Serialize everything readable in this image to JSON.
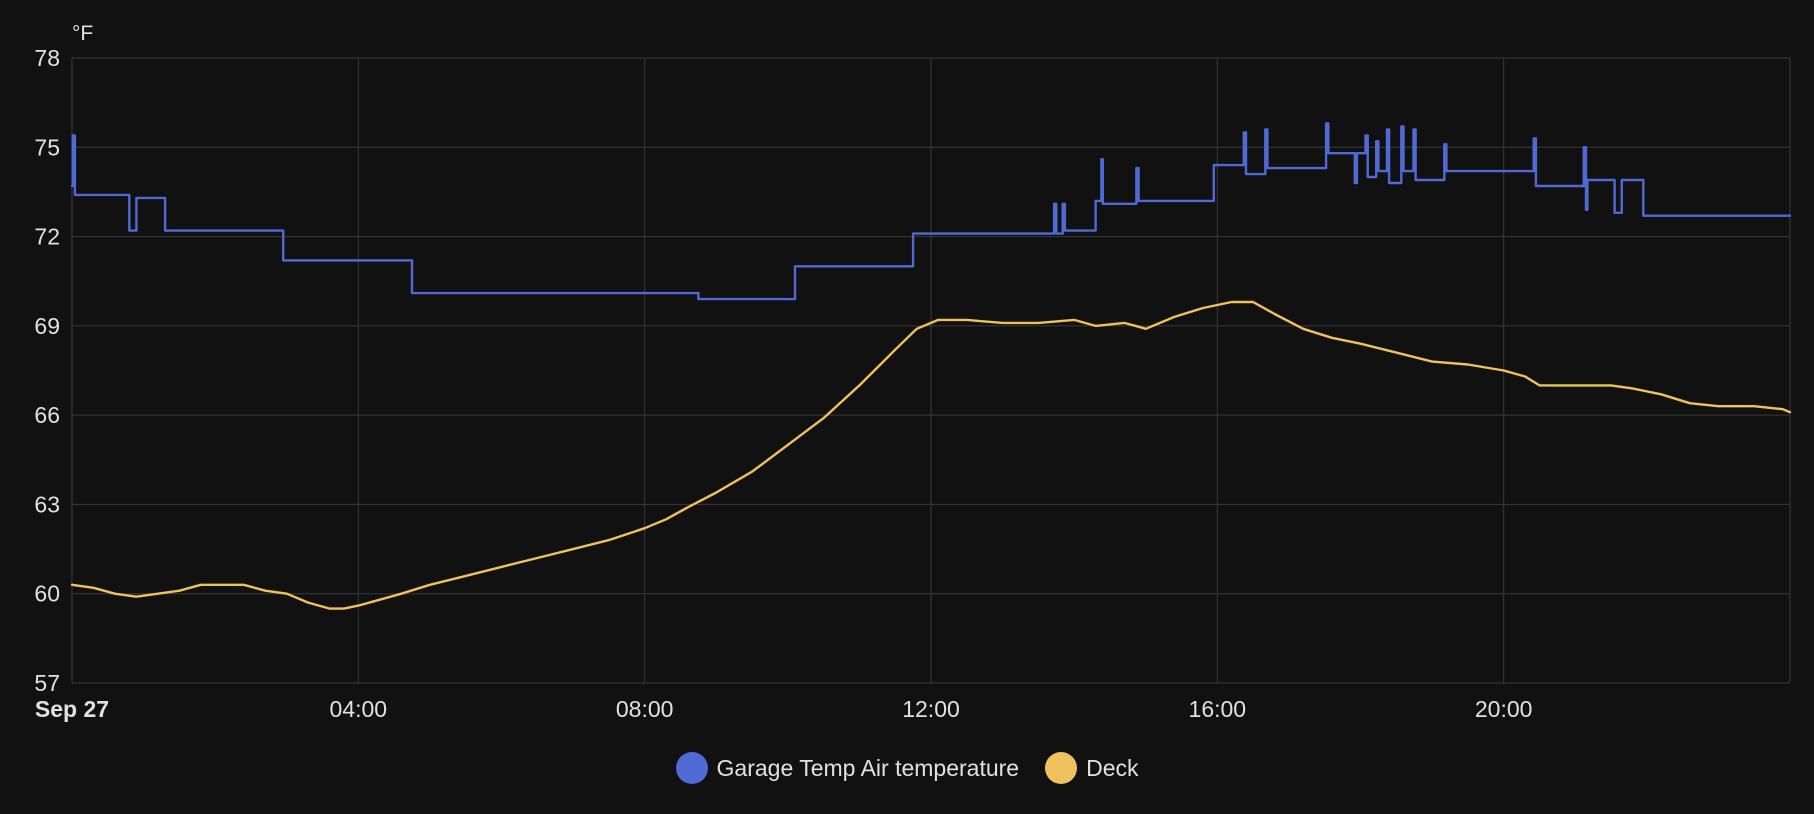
{
  "colors": {
    "background": "#111111",
    "grid": "#3a3a3a",
    "text": "#e1e1e1"
  },
  "chart_data": {
    "type": "line",
    "title": "",
    "unit": "°F",
    "xlabel": "",
    "ylabel": "°F",
    "grid": true,
    "legend_placement": "bottom-center",
    "x_ticks": [
      {
        "x": 0,
        "label": "Sep 27",
        "bold": true
      },
      {
        "x": 4,
        "label": "04:00",
        "bold": false
      },
      {
        "x": 8,
        "label": "08:00",
        "bold": false
      },
      {
        "x": 12,
        "label": "12:00",
        "bold": false
      },
      {
        "x": 16,
        "label": "16:00",
        "bold": false
      },
      {
        "x": 20,
        "label": "20:00",
        "bold": false
      }
    ],
    "x_unit": "hours after Sep 27 00:00",
    "xlim": [
      0,
      24
    ],
    "ylim": [
      57,
      78
    ],
    "y_ticks": [
      57,
      60,
      63,
      66,
      69,
      72,
      75,
      78
    ],
    "series": [
      {
        "name": "Garage Temp Air temperature",
        "color": "#4f6ad4",
        "step": true,
        "points": [
          [
            0.0,
            73.7
          ],
          [
            0.01,
            75.4
          ],
          [
            0.04,
            73.4
          ],
          [
            0.8,
            73.4
          ],
          [
            0.8,
            72.2
          ],
          [
            0.9,
            72.2
          ],
          [
            0.9,
            73.3
          ],
          [
            1.3,
            73.3
          ],
          [
            1.3,
            72.2
          ],
          [
            2.95,
            72.2
          ],
          [
            2.95,
            71.2
          ],
          [
            4.75,
            71.2
          ],
          [
            4.75,
            70.1
          ],
          [
            8.75,
            70.1
          ],
          [
            8.75,
            69.9
          ],
          [
            10.1,
            69.9
          ],
          [
            10.1,
            71.0
          ],
          [
            11.75,
            71.0
          ],
          [
            11.75,
            72.1
          ],
          [
            13.7,
            72.1
          ],
          [
            13.72,
            73.1
          ],
          [
            13.75,
            72.1
          ],
          [
            13.82,
            72.1
          ],
          [
            13.84,
            73.1
          ],
          [
            13.87,
            72.2
          ],
          [
            14.3,
            72.2
          ],
          [
            14.3,
            73.2
          ],
          [
            14.37,
            73.2
          ],
          [
            14.38,
            74.6
          ],
          [
            14.4,
            73.1
          ],
          [
            14.85,
            73.1
          ],
          [
            14.87,
            74.3
          ],
          [
            14.9,
            73.2
          ],
          [
            15.95,
            73.2
          ],
          [
            15.95,
            74.4
          ],
          [
            16.35,
            74.4
          ],
          [
            16.37,
            75.5
          ],
          [
            16.4,
            74.1
          ],
          [
            16.65,
            74.1
          ],
          [
            16.67,
            75.6
          ],
          [
            16.7,
            74.3
          ],
          [
            17.5,
            74.3
          ],
          [
            17.52,
            75.8
          ],
          [
            17.55,
            74.8
          ],
          [
            17.9,
            74.8
          ],
          [
            17.92,
            73.8
          ],
          [
            17.95,
            74.8
          ],
          [
            18.05,
            74.8
          ],
          [
            18.07,
            75.4
          ],
          [
            18.1,
            74.0
          ],
          [
            18.2,
            74.0
          ],
          [
            18.22,
            75.2
          ],
          [
            18.25,
            74.2
          ],
          [
            18.35,
            74.2
          ],
          [
            18.37,
            75.6
          ],
          [
            18.4,
            73.8
          ],
          [
            18.55,
            73.8
          ],
          [
            18.57,
            75.7
          ],
          [
            18.6,
            74.2
          ],
          [
            18.72,
            74.2
          ],
          [
            18.74,
            75.6
          ],
          [
            18.77,
            73.9
          ],
          [
            19.15,
            73.9
          ],
          [
            19.17,
            75.1
          ],
          [
            19.2,
            74.2
          ],
          [
            20.4,
            74.2
          ],
          [
            20.42,
            75.3
          ],
          [
            20.45,
            73.7
          ],
          [
            21.1,
            73.7
          ],
          [
            21.12,
            75.0
          ],
          [
            21.15,
            72.9
          ],
          [
            21.17,
            73.9
          ],
          [
            21.55,
            73.9
          ],
          [
            21.55,
            72.8
          ],
          [
            21.65,
            72.8
          ],
          [
            21.65,
            73.9
          ],
          [
            21.95,
            73.9
          ],
          [
            21.95,
            72.7
          ],
          [
            24.0,
            72.7
          ]
        ]
      },
      {
        "name": "Deck",
        "color": "#efc15f",
        "step": false,
        "points": [
          [
            0.0,
            60.3
          ],
          [
            0.3,
            60.2
          ],
          [
            0.6,
            60.0
          ],
          [
            0.9,
            59.9
          ],
          [
            1.2,
            60.0
          ],
          [
            1.5,
            60.1
          ],
          [
            1.8,
            60.3
          ],
          [
            2.1,
            60.3
          ],
          [
            2.4,
            60.3
          ],
          [
            2.7,
            60.1
          ],
          [
            3.0,
            60.0
          ],
          [
            3.3,
            59.7
          ],
          [
            3.6,
            59.5
          ],
          [
            3.8,
            59.5
          ],
          [
            4.0,
            59.6
          ],
          [
            4.3,
            59.8
          ],
          [
            4.6,
            60.0
          ],
          [
            5.0,
            60.3
          ],
          [
            5.5,
            60.6
          ],
          [
            6.0,
            60.9
          ],
          [
            6.5,
            61.2
          ],
          [
            7.0,
            61.5
          ],
          [
            7.5,
            61.8
          ],
          [
            8.0,
            62.2
          ],
          [
            8.3,
            62.5
          ],
          [
            8.6,
            62.9
          ],
          [
            9.0,
            63.4
          ],
          [
            9.5,
            64.1
          ],
          [
            10.0,
            65.0
          ],
          [
            10.5,
            65.9
          ],
          [
            11.0,
            67.0
          ],
          [
            11.5,
            68.2
          ],
          [
            11.8,
            68.9
          ],
          [
            12.1,
            69.2
          ],
          [
            12.5,
            69.2
          ],
          [
            13.0,
            69.1
          ],
          [
            13.5,
            69.1
          ],
          [
            14.0,
            69.2
          ],
          [
            14.3,
            69.0
          ],
          [
            14.7,
            69.1
          ],
          [
            15.0,
            68.9
          ],
          [
            15.4,
            69.3
          ],
          [
            15.8,
            69.6
          ],
          [
            16.2,
            69.8
          ],
          [
            16.5,
            69.8
          ],
          [
            16.8,
            69.4
          ],
          [
            17.2,
            68.9
          ],
          [
            17.6,
            68.6
          ],
          [
            18.0,
            68.4
          ],
          [
            18.5,
            68.1
          ],
          [
            19.0,
            67.8
          ],
          [
            19.5,
            67.7
          ],
          [
            20.0,
            67.5
          ],
          [
            20.3,
            67.3
          ],
          [
            20.5,
            67.0
          ],
          [
            21.0,
            67.0
          ],
          [
            21.5,
            67.0
          ],
          [
            21.8,
            66.9
          ],
          [
            22.2,
            66.7
          ],
          [
            22.6,
            66.4
          ],
          [
            23.0,
            66.3
          ],
          [
            23.5,
            66.3
          ],
          [
            23.9,
            66.2
          ],
          [
            24.0,
            66.1
          ]
        ]
      }
    ]
  },
  "legend": {
    "items": [
      {
        "label": "Garage Temp Air temperature",
        "color": "#4f6ad4"
      },
      {
        "label": "Deck",
        "color": "#efc15f"
      }
    ]
  }
}
